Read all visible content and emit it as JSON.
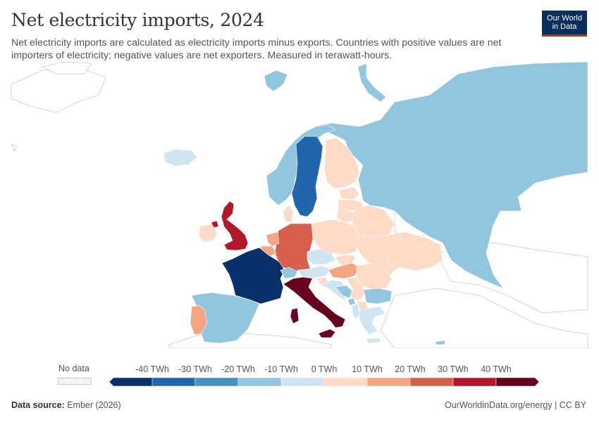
{
  "header": {
    "title": "Net electricity imports, 2024",
    "subtitle": "Net electricity imports are calculated as electricity imports minus exports. Countries with positive values are net importers of electricity; negative values are net exporters. Measured in terawatt-hours."
  },
  "logo": {
    "line1": "Our World",
    "line2": "in Data"
  },
  "legend": {
    "no_data_label": "No data",
    "bins": [
      {
        "label": "-40 TWh",
        "color": "#08306b"
      },
      {
        "label": "-30 TWh",
        "color": "#2166ac"
      },
      {
        "label": "-20 TWh",
        "color": "#4393c3"
      },
      {
        "label": "-10 TWh",
        "color": "#92c5de"
      },
      {
        "label": "0 TWh",
        "color": "#d1e5f0"
      },
      {
        "label": "10 TWh",
        "color": "#fddbc7"
      },
      {
        "label": "20 TWh",
        "color": "#f4a582"
      },
      {
        "label": "30 TWh",
        "color": "#d6604d"
      },
      {
        "label": "40 TWh",
        "color": "#b2182b"
      },
      {
        "label": "",
        "color": "#67001f"
      }
    ]
  },
  "map_data": {
    "regions": [
      {
        "name": "Russia",
        "color": "#92c5de"
      },
      {
        "name": "Norway",
        "color": "#92c5de"
      },
      {
        "name": "Sweden",
        "color": "#2166ac"
      },
      {
        "name": "Finland",
        "color": "#fddbc7"
      },
      {
        "name": "Estonia",
        "color": "#fddbc7"
      },
      {
        "name": "Latvia",
        "color": "#fddbc7"
      },
      {
        "name": "Lithuania",
        "color": "#fddbc7"
      },
      {
        "name": "Belarus",
        "color": "#fddbc7"
      },
      {
        "name": "Ukraine",
        "color": "#fddbc7"
      },
      {
        "name": "Poland",
        "color": "#fddbc7"
      },
      {
        "name": "Germany",
        "color": "#d6604d"
      },
      {
        "name": "Denmark",
        "color": "#fddbc7"
      },
      {
        "name": "Netherlands",
        "color": "#f4a582"
      },
      {
        "name": "Belgium",
        "color": "#f4a582"
      },
      {
        "name": "United Kingdom",
        "color": "#b2182b"
      },
      {
        "name": "Northern Ireland",
        "color": "#b2182b"
      },
      {
        "name": "Ireland",
        "color": "#fddbc7"
      },
      {
        "name": "France",
        "color": "#08306b"
      },
      {
        "name": "Spain",
        "color": "#92c5de"
      },
      {
        "name": "Portugal",
        "color": "#f4a582"
      },
      {
        "name": "Italy",
        "color": "#67001f"
      },
      {
        "name": "Sardinia",
        "color": "#67001f"
      },
      {
        "name": "Sicily",
        "color": "#67001f"
      },
      {
        "name": "Switzerland",
        "color": "#92c5de"
      },
      {
        "name": "Austria",
        "color": "#d1e5f0"
      },
      {
        "name": "Czechia",
        "color": "#d1e5f0"
      },
      {
        "name": "Slovakia",
        "color": "#fddbc7"
      },
      {
        "name": "Hungary",
        "color": "#f4a582"
      },
      {
        "name": "Slovenia",
        "color": "#fddbc7"
      },
      {
        "name": "Croatia",
        "color": "#d1e5f0"
      },
      {
        "name": "Bosnia",
        "color": "#92c5de"
      },
      {
        "name": "Serbia",
        "color": "#fddbc7"
      },
      {
        "name": "Romania",
        "color": "#fddbc7"
      },
      {
        "name": "Moldova",
        "color": "#fddbc7"
      },
      {
        "name": "Bulgaria",
        "color": "#92c5de"
      },
      {
        "name": "Greece",
        "color": "#d1e5f0"
      },
      {
        "name": "North Macedonia",
        "color": "#fddbc7"
      },
      {
        "name": "Montenegro",
        "color": "#92c5de"
      },
      {
        "name": "Albania",
        "color": "#d1e5f0"
      },
      {
        "name": "Iceland",
        "color": "#d1e5f0"
      },
      {
        "name": "Svalbard",
        "color": "#92c5de"
      },
      {
        "name": "Novaya Zemlya",
        "color": "#92c5de"
      },
      {
        "name": "Crete",
        "color": "#d1e5f0"
      },
      {
        "name": "Cyprus",
        "color": "#92c5de"
      }
    ]
  },
  "footer": {
    "source_label": "Data source:",
    "source_value": "Ember (2026)",
    "right": "OurWorldinData.org/energy | CC BY"
  }
}
